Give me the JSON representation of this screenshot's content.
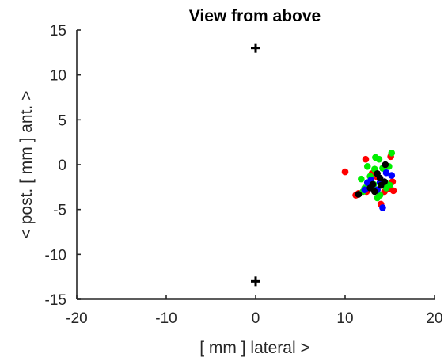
{
  "chart_data": {
    "type": "scatter",
    "title": "View from above",
    "xlabel": "[ mm ] lateral >",
    "ylabel": "< post. [ mm ]   ant. >",
    "xlim": [
      -20,
      20
    ],
    "ylim": [
      -15,
      15
    ],
    "xticks": [
      -20,
      -10,
      0,
      10,
      20
    ],
    "yticks": [
      -15,
      -10,
      -5,
      0,
      5,
      10,
      15
    ],
    "grid": false,
    "box": "left-bottom axes only",
    "reference_markers": {
      "symbol": "+",
      "color": "#000000",
      "points": [
        [
          0,
          13
        ],
        [
          0,
          -13
        ]
      ]
    },
    "series": [
      {
        "color": "#ff0000",
        "points": [
          [
            10.0,
            -0.8
          ],
          [
            12.3,
            0.6
          ],
          [
            15.1,
            0.9
          ],
          [
            11.5,
            -3.2
          ],
          [
            11.2,
            -3.4
          ],
          [
            12.4,
            -3.0
          ],
          [
            14.0,
            -4.4
          ],
          [
            15.3,
            -1.9
          ],
          [
            15.4,
            -2.9
          ],
          [
            13.0,
            -1.0
          ],
          [
            14.8,
            -2.7
          ],
          [
            12.8,
            -2.3
          ],
          [
            13.6,
            -1.4
          ],
          [
            14.4,
            -3.0
          ]
        ]
      },
      {
        "color": "#00ee00",
        "points": [
          [
            13.4,
            0.8
          ],
          [
            13.8,
            0.6
          ],
          [
            15.2,
            1.3
          ],
          [
            11.8,
            -1.6
          ],
          [
            12.2,
            -2.6
          ],
          [
            13.2,
            -2.2
          ],
          [
            14.5,
            -2.0
          ],
          [
            14.2,
            -0.4
          ],
          [
            12.8,
            -1.3
          ],
          [
            13.9,
            -3.4
          ],
          [
            13.6,
            -3.7
          ],
          [
            14.9,
            -0.2
          ],
          [
            12.0,
            -3.0
          ],
          [
            14.6,
            -2.6
          ],
          [
            13.3,
            -0.5
          ],
          [
            12.5,
            -0.2
          ],
          [
            15.0,
            -2.3
          ]
        ]
      },
      {
        "color": "#0000ff",
        "points": [
          [
            14.2,
            -4.8
          ],
          [
            15.2,
            -1.2
          ],
          [
            12.9,
            -1.7
          ],
          [
            13.6,
            -2.8
          ],
          [
            14.6,
            -0.9
          ],
          [
            12.5,
            -2.0
          ],
          [
            13.9,
            -2.0
          ],
          [
            12.2,
            -2.8
          ]
        ]
      },
      {
        "color": "#000000",
        "points": [
          [
            14.5,
            0.0
          ],
          [
            13.6,
            -1.0
          ],
          [
            13.1,
            -2.2
          ],
          [
            14.4,
            -1.9
          ],
          [
            11.5,
            -3.3
          ],
          [
            12.8,
            -2.6
          ],
          [
            13.3,
            -3.0
          ],
          [
            14.0,
            -2.3
          ],
          [
            13.9,
            -1.5
          ]
        ]
      }
    ]
  }
}
